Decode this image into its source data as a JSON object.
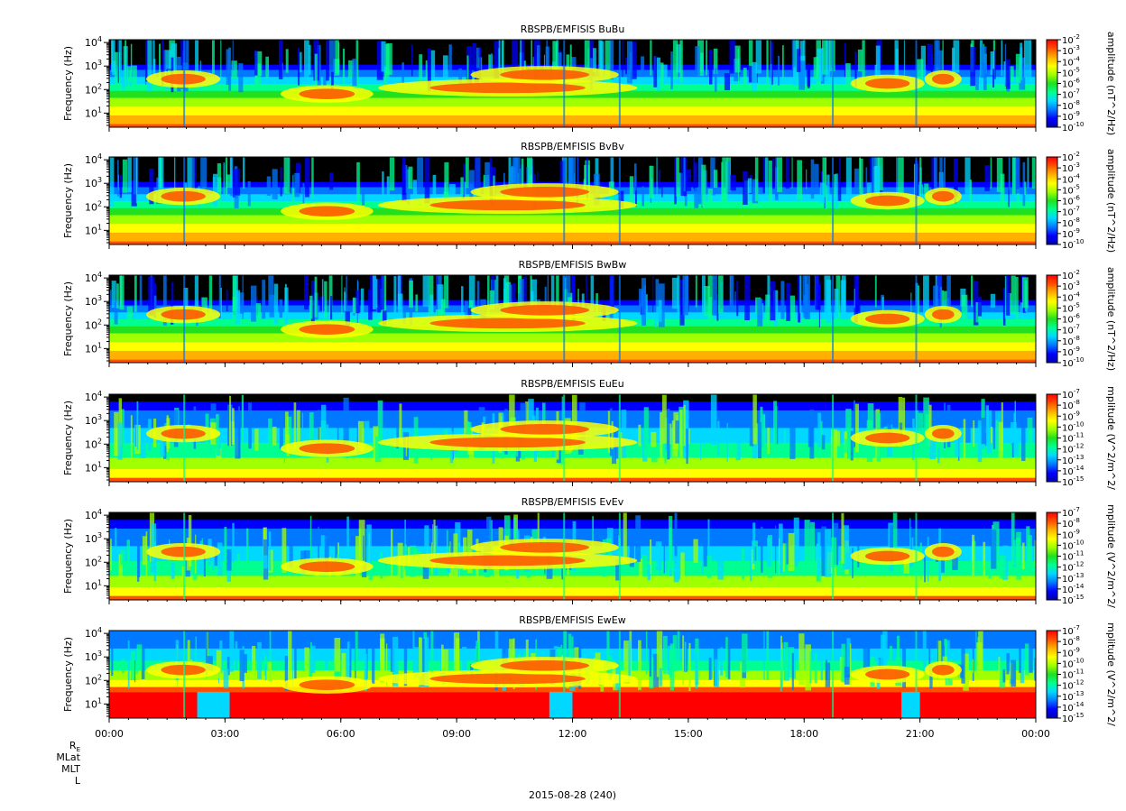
{
  "chart_data": [
    {
      "type": "heatmap",
      "title": "RBSPB/EMFISIS  BuBu",
      "ylabel": "Frequency (Hz)",
      "yscale": "log",
      "yticks": [
        "10^1",
        "10^2",
        "10^3",
        "10^4"
      ],
      "colorbar": {
        "label": "amplitude (nT^2/Hz)",
        "scale": "log",
        "ticks": [
          "10^-2",
          "10^-3",
          "10^-4",
          "10^-5",
          "10^-6",
          "10^-7",
          "10^-8",
          "10^-9",
          "10^-10"
        ]
      }
    },
    {
      "type": "heatmap",
      "title": "RBSPB/EMFISIS  BvBv",
      "ylabel": "Frequency (Hz)",
      "yscale": "log",
      "yticks": [
        "10^1",
        "10^2",
        "10^3",
        "10^4"
      ],
      "colorbar": {
        "label": "amplitude (nT^2/Hz)",
        "scale": "log",
        "ticks": [
          "10^-2",
          "10^-3",
          "10^-4",
          "10^-5",
          "10^-6",
          "10^-7",
          "10^-8",
          "10^-9",
          "10^-10"
        ]
      }
    },
    {
      "type": "heatmap",
      "title": "RBSPB/EMFISIS  BwBw",
      "ylabel": "Frequency (Hz)",
      "yscale": "log",
      "yticks": [
        "10^1",
        "10^2",
        "10^3",
        "10^4"
      ],
      "colorbar": {
        "label": "amplitude (nT^2/Hz)",
        "scale": "log",
        "ticks": [
          "10^-2",
          "10^-3",
          "10^-4",
          "10^-5",
          "10^-6",
          "10^-7",
          "10^-8",
          "10^-9",
          "10^-10"
        ]
      }
    },
    {
      "type": "heatmap",
      "title": "RBSPB/EMFISIS  EuEu",
      "ylabel": "Frequency (Hz)",
      "yscale": "log",
      "yticks": [
        "10^1",
        "10^2",
        "10^3",
        "10^4"
      ],
      "colorbar": {
        "label": "mplitude (V^2/m^2/",
        "scale": "log",
        "ticks": [
          "10^-7",
          "10^-8",
          "10^-9",
          "10^-10",
          "10^-11",
          "10^-12",
          "10^-13",
          "10^-14",
          "10^-15"
        ]
      }
    },
    {
      "type": "heatmap",
      "title": "RBSPB/EMFISIS  EvEv",
      "ylabel": "Frequency (Hz)",
      "yscale": "log",
      "yticks": [
        "10^1",
        "10^2",
        "10^3",
        "10^4"
      ],
      "colorbar": {
        "label": "mplitude (V^2/m^2/",
        "scale": "log",
        "ticks": [
          "10^-7",
          "10^-8",
          "10^-9",
          "10^-10",
          "10^-11",
          "10^-12",
          "10^-13",
          "10^-14",
          "10^-15"
        ]
      }
    },
    {
      "type": "heatmap",
      "title": "RBSPB/EMFISIS  EwEw",
      "ylabel": "Frequency (Hz)",
      "yscale": "log",
      "yticks": [
        "10^1",
        "10^2",
        "10^3",
        "10^4"
      ],
      "colorbar": {
        "label": "mplitude (V^2/m^2/",
        "scale": "log",
        "ticks": [
          "10^-7",
          "10^-8",
          "10^-9",
          "10^-10",
          "10^-11",
          "10^-12",
          "10^-13",
          "10^-14",
          "10^-15"
        ]
      }
    }
  ],
  "x_axis": {
    "ticks": [
      "00:00",
      "03:00",
      "06:00",
      "09:00",
      "12:00",
      "15:00",
      "18:00",
      "21:00",
      "00:00"
    ],
    "xlabel": "2015-08-28 (240)",
    "ephemeris_labels": [
      "R_E",
      "MLat",
      "MLT",
      "L"
    ]
  },
  "colormap": [
    "#000000",
    "#0000b0",
    "#0000ff",
    "#0078ff",
    "#00d8ff",
    "#00ff90",
    "#20e020",
    "#a0ff00",
    "#ffff00",
    "#ffb000",
    "#ff5000",
    "#ff0000"
  ]
}
